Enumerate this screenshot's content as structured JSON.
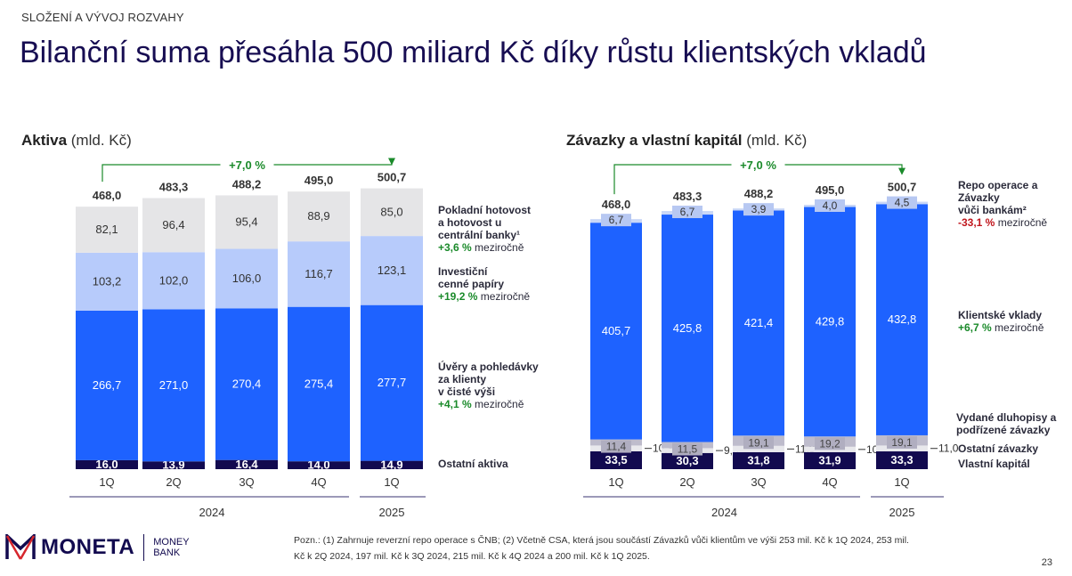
{
  "kicker": "SLOŽENÍ A VÝVOJ ROZVAHY",
  "title": "Bilanční suma přesáhla 500 miliard Kč díky růstu klientských vkladů",
  "footnote_line1": "Pozn.: (1) Zahrnuje reverzní repo operace s ČNB; (2) Včetně CSA, která jsou součástí Závazků vůči klientům ve výši 253 mil. Kč k 1Q 2024, 253 mil.",
  "footnote_line2": "Kč k 2Q 2024, 197 mil. Kč k 3Q 2024, 215 mil. Kč k 4Q 2024 a 200 mil. Kč k 1Q 2025.",
  "page_number": "23",
  "logo": {
    "name": "MONETA",
    "sub1": "MONEY",
    "sub2": "BANK"
  },
  "colors": {
    "navy": "#120a4f",
    "blue": "#1e62ff",
    "light_blue": "#b7cbfb",
    "light_gray": "#e5e5e7",
    "gray": "#bebccc",
    "repo": "#c9d7f7",
    "green": "#1a8a2a",
    "red": "#c0161d"
  },
  "chart_data": [
    {
      "type": "bar",
      "stacked": true,
      "title": "Aktiva",
      "unit": "(mld. Kč)",
      "categories": [
        "1Q",
        "2Q",
        "3Q",
        "4Q",
        "1Q"
      ],
      "years": [
        "2024",
        "2025"
      ],
      "totals": [
        "468,0",
        "483,3",
        "488,2",
        "495,0",
        "500,7"
      ],
      "growth": "+7,0 %",
      "series": [
        {
          "name": "Ostatní aktiva",
          "values": [
            16.0,
            13.9,
            16.4,
            14.0,
            14.9
          ],
          "color": "#120a4f"
        },
        {
          "name": "Úvěry a pohledávky za klienty v čisté výši",
          "values": [
            266.7,
            271.0,
            270.4,
            275.4,
            277.7
          ],
          "color": "#1e62ff",
          "yoy": "+4,1 %"
        },
        {
          "name": "Investiční cenné papíry",
          "values": [
            103.2,
            102.0,
            106.0,
            116.7,
            123.1
          ],
          "color": "#b7cbfb",
          "yoy": "+19,2 %"
        },
        {
          "name": "Pokladní hotovost a hotovost u centrální banky¹",
          "values": [
            82.1,
            96.4,
            95.4,
            88.9,
            85.0
          ],
          "color": "#e5e5e7",
          "yoy": "+3,6 %"
        }
      ]
    },
    {
      "type": "bar",
      "stacked": true,
      "title": "Závazky a vlastní kapitál",
      "unit": "(mld. Kč)",
      "categories": [
        "1Q",
        "2Q",
        "3Q",
        "4Q",
        "1Q"
      ],
      "years": [
        "2024",
        "2025"
      ],
      "totals": [
        "468,0",
        "483,3",
        "488,2",
        "495,0",
        "500,7"
      ],
      "growth": "+7,0 %",
      "series": [
        {
          "name": "Vlastní kapitál",
          "values": [
            33.5,
            30.3,
            31.8,
            31.9,
            33.3
          ],
          "color": "#120a4f"
        },
        {
          "name": "Ostatní závazky",
          "values": [
            10.8,
            9.0,
            11.9,
            10.1,
            11.0
          ],
          "color": "#e8e8ec"
        },
        {
          "name": "Vydané dluhopisy a podřízené závazky",
          "values": [
            11.4,
            11.5,
            19.1,
            19.2,
            19.1
          ],
          "color": "#bebccc"
        },
        {
          "name": "Klientské vklady",
          "values": [
            405.7,
            425.8,
            421.4,
            429.8,
            432.8
          ],
          "color": "#1e62ff",
          "yoy": "+6,7 %"
        },
        {
          "name": "Repo operace a Závazky vůči bankám²",
          "values": [
            6.7,
            6.7,
            3.9,
            4.0,
            4.5
          ],
          "color": "#c9d7f7",
          "yoy": "-33,1 %"
        }
      ]
    }
  ],
  "legend_left": [
    {
      "l1": "Pokladní hotovost",
      "l2": "a hotovost u",
      "l3": "centrální banky¹",
      "yoy": "+3,6 %",
      "suffix": "meziročně"
    },
    {
      "l1": "Investiční",
      "l2": "cenné papíry",
      "yoy": "+19,2 %",
      "suffix": "meziročně"
    },
    {
      "l1": "Úvěry a pohledávky",
      "l2": "za klienty",
      "l3": "v čisté výši",
      "yoy": "+4,1 %",
      "suffix": "meziročně"
    },
    {
      "l1": "Ostatní aktiva"
    }
  ],
  "legend_right": [
    {
      "l1": "Repo operace a",
      "l2": "Závazky",
      "l3": "vůči bankám²",
      "yoy": "-33,1 %",
      "suffix": "meziročně"
    },
    {
      "l1": "Klientské vklady",
      "yoy": "+6,7 %",
      "suffix": "meziročně"
    },
    {
      "l1": "Vydané dluhopisy a",
      "l2": "podřízené závazky"
    },
    {
      "l1": "Ostatní závazky"
    },
    {
      "l1": "Vlastní kapitál"
    }
  ]
}
